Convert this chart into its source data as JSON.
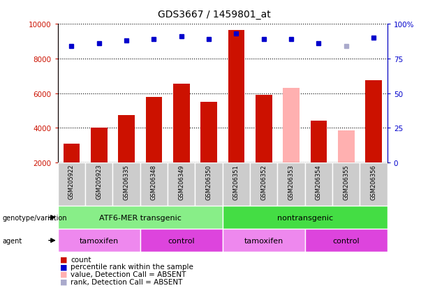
{
  "title": "GDS3667 / 1459801_at",
  "samples": [
    "GSM205922",
    "GSM205923",
    "GSM206335",
    "GSM206348",
    "GSM206349",
    "GSM206350",
    "GSM206351",
    "GSM206352",
    "GSM206353",
    "GSM206354",
    "GSM206355",
    "GSM206356"
  ],
  "bar_values": [
    3100,
    4000,
    4750,
    5800,
    6550,
    5500,
    9650,
    5900,
    6300,
    4400,
    3850,
    6750
  ],
  "bar_absent": [
    false,
    false,
    false,
    false,
    false,
    false,
    false,
    false,
    true,
    false,
    true,
    false
  ],
  "dot_values": [
    84,
    86,
    88,
    89,
    91,
    89,
    93,
    89,
    89,
    86,
    84,
    90
  ],
  "dot_absent": [
    false,
    false,
    false,
    false,
    false,
    false,
    false,
    false,
    false,
    false,
    true,
    false
  ],
  "ylim_left": [
    2000,
    10000
  ],
  "ylim_right": [
    0,
    100
  ],
  "yticks_left": [
    2000,
    4000,
    6000,
    8000,
    10000
  ],
  "yticks_right": [
    0,
    25,
    50,
    75,
    100
  ],
  "ytick_labels_right": [
    "0",
    "25",
    "50",
    "75",
    "100%"
  ],
  "groups": [
    {
      "label": "ATF6-MER transgenic",
      "start": 0,
      "end": 6,
      "color": "#88EE88"
    },
    {
      "label": "nontransgenic",
      "start": 6,
      "end": 12,
      "color": "#44DD44"
    }
  ],
  "agent_groups": [
    {
      "label": "tamoxifen",
      "start": 0,
      "end": 3,
      "color": "#EE88EE"
    },
    {
      "label": "control",
      "start": 3,
      "end": 6,
      "color": "#DD44DD"
    },
    {
      "label": "tamoxifen",
      "start": 6,
      "end": 9,
      "color": "#EE88EE"
    },
    {
      "label": "control",
      "start": 9,
      "end": 12,
      "color": "#DD44DD"
    }
  ],
  "bar_color_normal": "#CC1100",
  "bar_color_absent": "#FFB0B0",
  "dot_color_normal": "#0000CC",
  "dot_color_absent": "#AAAACC",
  "legend_items": [
    {
      "label": "count",
      "color": "#CC1100"
    },
    {
      "label": "percentile rank within the sample",
      "color": "#0000CC"
    },
    {
      "label": "value, Detection Call = ABSENT",
      "color": "#FFB0B0"
    },
    {
      "label": "rank, Detection Call = ABSENT",
      "color": "#AAAACC"
    }
  ],
  "left_label_color": "#CC1100",
  "right_label_color": "#0000CC",
  "xticklabel_bg": "#CCCCCC",
  "genotype_label": "genotype/variation",
  "agent_label": "agent"
}
